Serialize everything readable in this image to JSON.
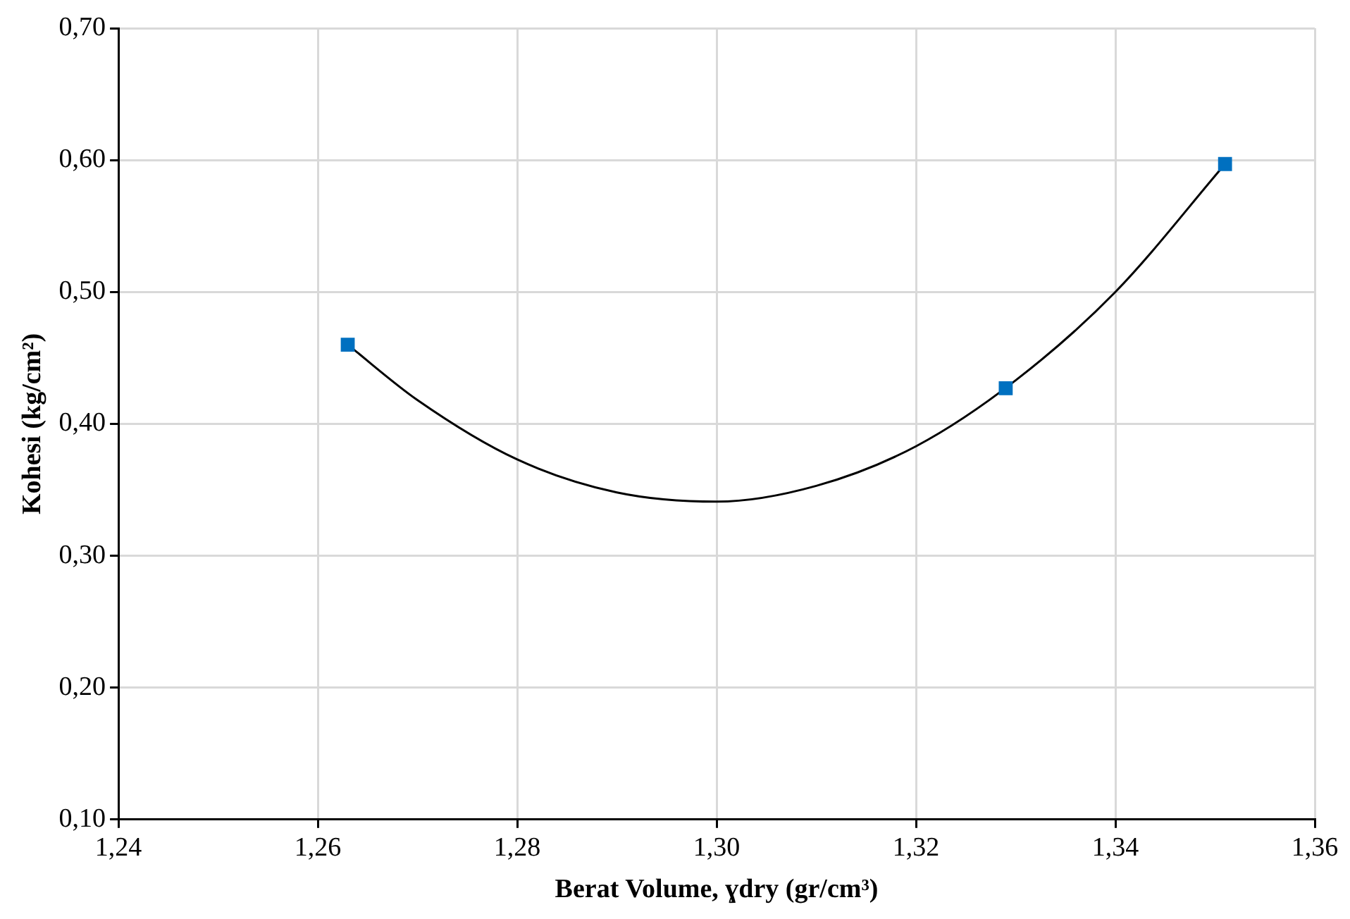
{
  "chart_data": {
    "type": "scatter",
    "xlabel": "Berat Volume, ɣdry (gr/cm³)",
    "ylabel": "Kohesi (kg/cm²)",
    "xlim": [
      1.24,
      1.36
    ],
    "xticks": [
      {
        "value": 1.24,
        "label": "1,24"
      },
      {
        "value": 1.26,
        "label": "1,26"
      },
      {
        "value": 1.28,
        "label": "1,28"
      },
      {
        "value": 1.3,
        "label": "1,30"
      },
      {
        "value": 1.32,
        "label": "1,32"
      },
      {
        "value": 1.34,
        "label": "1,34"
      },
      {
        "value": 1.36,
        "label": "1,36"
      }
    ],
    "ylim": [
      0.1,
      0.7
    ],
    "yticks": [
      {
        "value": 0.1,
        "label": "0,10"
      },
      {
        "value": 0.2,
        "label": "0,20"
      },
      {
        "value": 0.3,
        "label": "0,30"
      },
      {
        "value": 0.4,
        "label": "0,40"
      },
      {
        "value": 0.5,
        "label": "0,50"
      },
      {
        "value": 0.6,
        "label": "0,60"
      },
      {
        "value": 0.7,
        "label": "0,70"
      }
    ],
    "grid": true,
    "legend": false,
    "series": [
      {
        "color": "#0070c0",
        "marker": "square",
        "x": [
          1.263,
          1.329,
          1.351
        ],
        "values": [
          0.46,
          0.427,
          0.597
        ]
      },
      {
        "type": "line",
        "color": "#000000",
        "marker": "none",
        "line_style": "solid",
        "x": [
          1.263,
          1.27,
          1.28,
          1.29,
          1.3,
          1.31,
          1.32,
          1.33,
          1.34,
          1.351
        ],
        "values": [
          0.46,
          0.418,
          0.373,
          0.348,
          0.341,
          0.353,
          0.383,
          0.433,
          0.5,
          0.597
        ]
      }
    ]
  }
}
